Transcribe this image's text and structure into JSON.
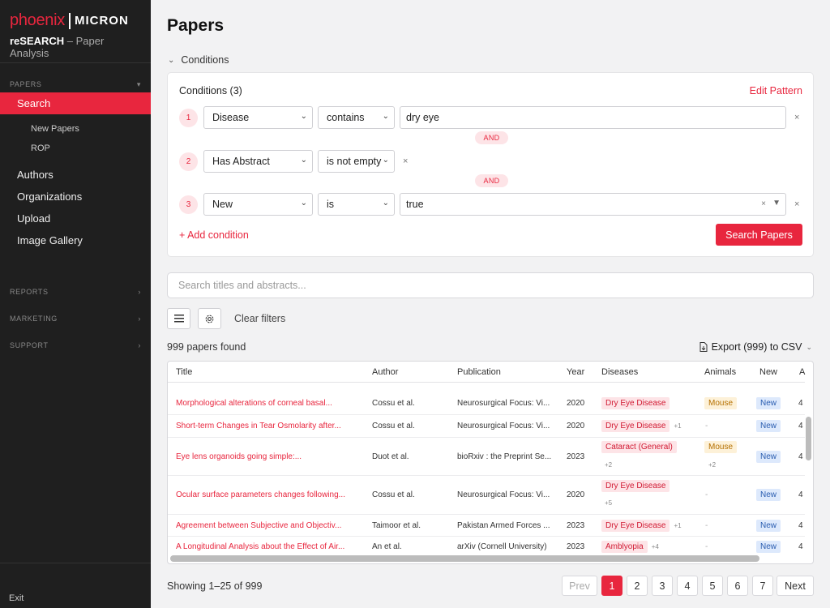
{
  "brand": {
    "phoenix": "phoenix",
    "micron": "MICRON",
    "app": "reSEARCH",
    "subtitle": " – Paper Analysis"
  },
  "sidebar": {
    "section_papers": "PAPERS",
    "search": "Search",
    "sub_items": [
      "New Papers",
      "ROP"
    ],
    "items": [
      "Authors",
      "Organizations",
      "Upload",
      "Image Gallery"
    ],
    "section_reports": "REPORTS",
    "section_marketing": "MARKETING",
    "section_support": "SUPPORT",
    "exit": "Exit"
  },
  "page": {
    "title": "Papers",
    "conditions_toggle": "Conditions"
  },
  "conditions": {
    "header": "Conditions (3)",
    "edit_pattern": "Edit Pattern",
    "rows": [
      {
        "num": "1",
        "field": "Disease",
        "operator": "contains",
        "value": "dry eye"
      },
      {
        "num": "2",
        "field": "Has Abstract",
        "operator": "is not empty",
        "value": ""
      },
      {
        "num": "3",
        "field": "New",
        "operator": "is",
        "value": "true"
      }
    ],
    "and_label": "AND",
    "add_condition": "+ Add condition",
    "search_button": "Search Papers"
  },
  "search": {
    "placeholder": "Search titles and abstracts..."
  },
  "toolbar": {
    "clear_filters": "Clear filters"
  },
  "results": {
    "found": "999 papers found",
    "export": "Export (999) to CSV"
  },
  "table": {
    "headers": [
      "Title",
      "Author",
      "Publication",
      "Year",
      "Diseases",
      "Animals",
      "New",
      "A"
    ],
    "rows": [
      {
        "title": "Morphological alterations of corneal basal...",
        "author": "Cossu et al.",
        "publication": "Neurosurgical Focus: Vi...",
        "year": "2020",
        "disease": "Dry Eye Disease",
        "disease_more": "",
        "animal": "Mouse",
        "animal_more": "",
        "new": "New",
        "a": "4"
      },
      {
        "title": "Short-term Changes in Tear Osmolarity after...",
        "author": "Cossu et al.",
        "publication": "Neurosurgical Focus: Vi...",
        "year": "2020",
        "disease": "Dry Eye Disease",
        "disease_more": "+1",
        "animal": "-",
        "animal_more": "",
        "new": "New",
        "a": "4"
      },
      {
        "title": "Eye lens organoids going simple:...",
        "author": "Duot et al.",
        "publication": "bioRxiv : the Preprint Se...",
        "year": "2023",
        "disease": "Cataract (General)",
        "disease_more": "+2",
        "animal": "Mouse",
        "animal_more": "+2",
        "new": "New",
        "a": "4"
      },
      {
        "title": "Ocular surface parameters changes following...",
        "author": "Cossu et al.",
        "publication": "Neurosurgical Focus: Vi...",
        "year": "2020",
        "disease": "Dry Eye Disease",
        "disease_more": "+5",
        "animal": "-",
        "animal_more": "",
        "new": "New",
        "a": "4"
      },
      {
        "title": "Agreement between Subjective and Objectiv...",
        "author": "Taimoor et al.",
        "publication": "Pakistan Armed Forces ...",
        "year": "2023",
        "disease": "Dry Eye Disease",
        "disease_more": "+1",
        "animal": "-",
        "animal_more": "",
        "new": "New",
        "a": "4"
      },
      {
        "title": "A Longitudinal Analysis about the Effect of Air...",
        "author": "An et al.",
        "publication": "arXiv (Cornell University)",
        "year": "2023",
        "disease": "Amblyopia",
        "disease_more": "+4",
        "animal": "-",
        "animal_more": "",
        "new": "New",
        "a": "4"
      }
    ]
  },
  "pagination": {
    "showing": "Showing 1–25 of 999",
    "prev": "Prev",
    "pages": [
      "1",
      "2",
      "3",
      "4",
      "5",
      "6",
      "7"
    ],
    "next": "Next"
  }
}
